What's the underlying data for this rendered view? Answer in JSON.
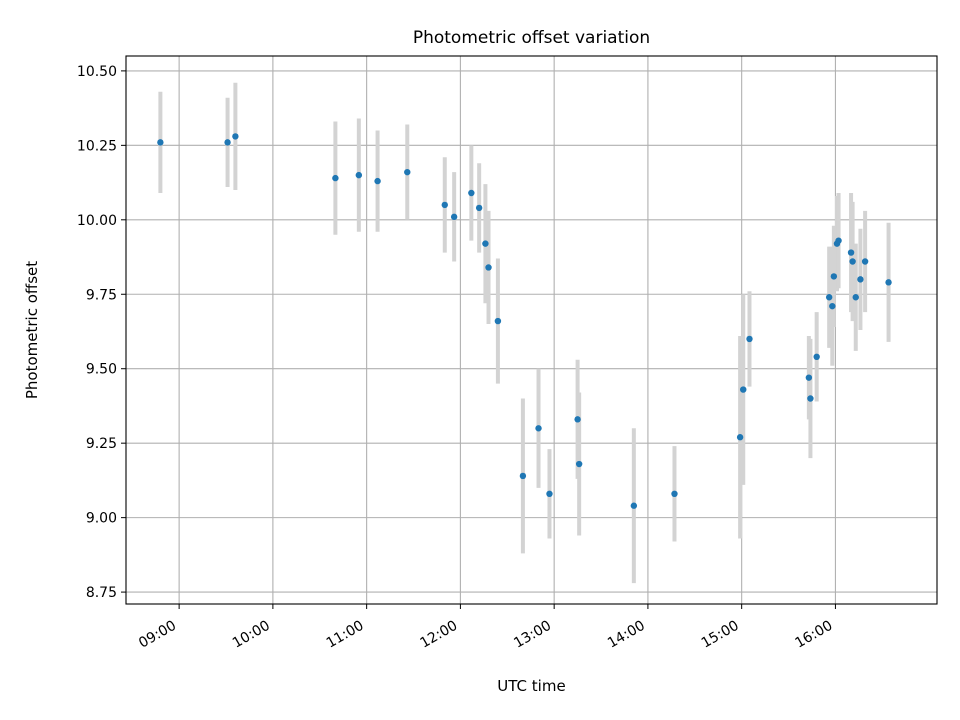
{
  "chart_data": {
    "type": "scatter",
    "title": "Photometric offset variation",
    "xlabel": "UTC time",
    "ylabel": "Photometric offset",
    "xlim": [
      "08:26",
      "17:05"
    ],
    "ylim": [
      8.71,
      10.55
    ],
    "grid": true,
    "x_ticks": [
      "09:00",
      "10:00",
      "11:00",
      "12:00",
      "13:00",
      "14:00",
      "15:00",
      "16:00"
    ],
    "y_ticks": [
      8.75,
      9.0,
      9.25,
      9.5,
      9.75,
      10.0,
      10.25,
      10.5
    ],
    "y_tick_labels": [
      "8.75",
      "9.00",
      "9.25",
      "9.50",
      "9.75",
      "10.00",
      "10.25",
      "10.50"
    ],
    "series": [
      {
        "marker_color": "#1f77b4",
        "errorbar_color": "#d3d3d3",
        "points": [
          {
            "x": "08:48",
            "y": 10.26,
            "err": 0.17
          },
          {
            "x": "09:31",
            "y": 10.26,
            "err": 0.15
          },
          {
            "x": "09:36",
            "y": 10.28,
            "err": 0.18
          },
          {
            "x": "10:40",
            "y": 10.14,
            "err": 0.19
          },
          {
            "x": "10:55",
            "y": 10.15,
            "err": 0.19
          },
          {
            "x": "11:07",
            "y": 10.13,
            "err": 0.17
          },
          {
            "x": "11:26",
            "y": 10.16,
            "err": 0.16
          },
          {
            "x": "11:50",
            "y": 10.05,
            "err": 0.16
          },
          {
            "x": "11:56",
            "y": 10.01,
            "err": 0.15
          },
          {
            "x": "12:07",
            "y": 10.09,
            "err": 0.16
          },
          {
            "x": "12:12",
            "y": 10.04,
            "err": 0.15
          },
          {
            "x": "12:16",
            "y": 9.92,
            "err": 0.2
          },
          {
            "x": "12:18",
            "y": 9.84,
            "err": 0.19
          },
          {
            "x": "12:24",
            "y": 9.66,
            "err": 0.21
          },
          {
            "x": "12:40",
            "y": 9.14,
            "err": 0.26
          },
          {
            "x": "12:50",
            "y": 9.3,
            "err": 0.2
          },
          {
            "x": "12:57",
            "y": 9.08,
            "err": 0.15
          },
          {
            "x": "13:15",
            "y": 9.33,
            "err": 0.2
          },
          {
            "x": "13:16",
            "y": 9.18,
            "err": 0.24
          },
          {
            "x": "13:51",
            "y": 9.04,
            "err": 0.26
          },
          {
            "x": "14:17",
            "y": 9.08,
            "err": 0.16
          },
          {
            "x": "14:59",
            "y": 9.27,
            "err": 0.34
          },
          {
            "x": "15:01",
            "y": 9.43,
            "err": 0.32
          },
          {
            "x": "15:05",
            "y": 9.6,
            "err": 0.16
          },
          {
            "x": "15:43",
            "y": 9.47,
            "err": 0.14
          },
          {
            "x": "15:44",
            "y": 9.4,
            "err": 0.2
          },
          {
            "x": "15:48",
            "y": 9.54,
            "err": 0.15
          },
          {
            "x": "15:56",
            "y": 9.74,
            "err": 0.17
          },
          {
            "x": "15:58",
            "y": 9.71,
            "err": 0.2
          },
          {
            "x": "15:59",
            "y": 9.81,
            "err": 0.17
          },
          {
            "x": "16:01",
            "y": 9.92,
            "err": 0.16
          },
          {
            "x": "16:02",
            "y": 9.93,
            "err": 0.16
          },
          {
            "x": "16:10",
            "y": 9.89,
            "err": 0.2
          },
          {
            "x": "16:11",
            "y": 9.86,
            "err": 0.2
          },
          {
            "x": "16:13",
            "y": 9.74,
            "err": 0.18
          },
          {
            "x": "16:16",
            "y": 9.8,
            "err": 0.17
          },
          {
            "x": "16:19",
            "y": 9.86,
            "err": 0.17
          },
          {
            "x": "16:34",
            "y": 9.79,
            "err": 0.2
          }
        ]
      }
    ]
  }
}
